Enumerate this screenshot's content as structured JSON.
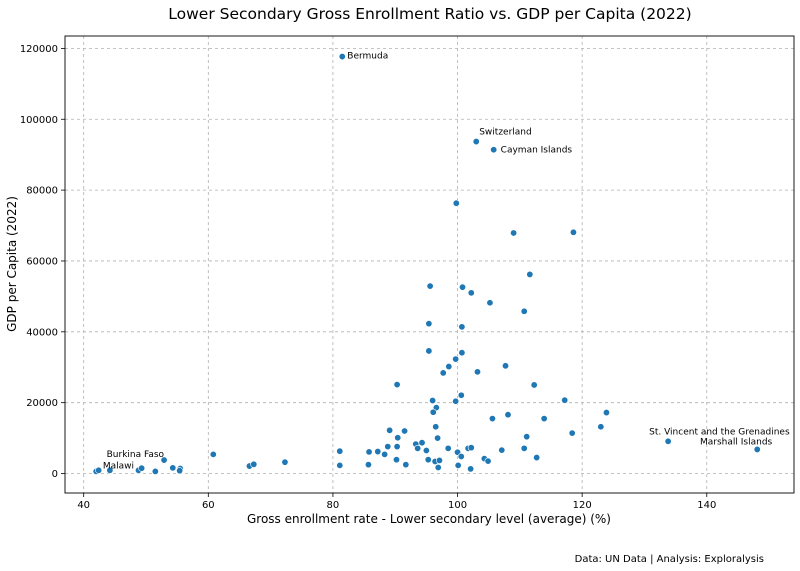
{
  "chart_data": {
    "type": "scatter",
    "title": "Lower Secondary Gross Enrollment Ratio vs. GDP per Capita (2022)",
    "xlabel": "Gross enrollment rate - Lower secondary level (average) (%)",
    "ylabel": "GDP per Capita (2022)",
    "xlim": [
      37,
      154
    ],
    "ylim": [
      -5500,
      123500
    ],
    "xticks": [
      40,
      60,
      80,
      100,
      120,
      140
    ],
    "yticks": [
      0,
      20000,
      40000,
      60000,
      80000,
      100000,
      120000
    ],
    "grid": true,
    "marker_color": "#1f77b4",
    "points": [
      [
        81.5,
        117700
      ],
      [
        103,
        93700
      ],
      [
        105.8,
        91400
      ],
      [
        99.8,
        76300
      ],
      [
        109,
        67900
      ],
      [
        118.6,
        68100
      ],
      [
        111.6,
        56200
      ],
      [
        95.6,
        52900
      ],
      [
        100.8,
        52600
      ],
      [
        102.2,
        51000
      ],
      [
        105.2,
        48200
      ],
      [
        110.7,
        45800
      ],
      [
        95.4,
        42300
      ],
      [
        100.7,
        41400
      ],
      [
        95.4,
        34600
      ],
      [
        100.7,
        34100
      ],
      [
        99.7,
        32300
      ],
      [
        98.6,
        30200
      ],
      [
        107.7,
        30400
      ],
      [
        97.7,
        28400
      ],
      [
        103.2,
        28700
      ],
      [
        90.3,
        25100
      ],
      [
        112.3,
        25000
      ],
      [
        96,
        20600
      ],
      [
        99.7,
        20400
      ],
      [
        100.6,
        22100
      ],
      [
        96.6,
        18600
      ],
      [
        96.1,
        17300
      ],
      [
        117.2,
        20700
      ],
      [
        123.9,
        17200
      ],
      [
        105.6,
        15500
      ],
      [
        108.1,
        16600
      ],
      [
        113.9,
        15500
      ],
      [
        96.5,
        13200
      ],
      [
        89.1,
        12200
      ],
      [
        91.5,
        12000
      ],
      [
        118.4,
        11400
      ],
      [
        123,
        13200
      ],
      [
        111.1,
        10400
      ],
      [
        96.8,
        10000
      ],
      [
        90.4,
        10100
      ],
      [
        93.3,
        8300
      ],
      [
        94.3,
        8700
      ],
      [
        133.8,
        9100
      ],
      [
        148.1,
        6800
      ],
      [
        81.1,
        6300
      ],
      [
        85.8,
        6100
      ],
      [
        87.2,
        6200
      ],
      [
        88.3,
        5400
      ],
      [
        88.8,
        7600
      ],
      [
        90.3,
        7600
      ],
      [
        93.6,
        7100
      ],
      [
        95,
        6500
      ],
      [
        98.5,
        7100
      ],
      [
        100,
        6000
      ],
      [
        100.6,
        4800
      ],
      [
        101.7,
        7100
      ],
      [
        102.2,
        7300
      ],
      [
        107.1,
        6600
      ],
      [
        110.7,
        7100
      ],
      [
        112.7,
        4500
      ],
      [
        90.2,
        3900
      ],
      [
        95.3,
        3900
      ],
      [
        96.4,
        3400
      ],
      [
        97.1,
        3700
      ],
      [
        104.3,
        4200
      ],
      [
        104.9,
        3500
      ],
      [
        81.1,
        2300
      ],
      [
        85.7,
        2500
      ],
      [
        91.7,
        2500
      ],
      [
        96.9,
        1700
      ],
      [
        100.1,
        2300
      ],
      [
        102.1,
        1300
      ],
      [
        72.3,
        3200
      ],
      [
        66.6,
        2100
      ],
      [
        67.3,
        2600
      ],
      [
        60.8,
        5400
      ],
      [
        52.9,
        3800
      ],
      [
        54.3,
        1600
      ],
      [
        55.5,
        1400
      ],
      [
        55.4,
        800
      ],
      [
        51.5,
        600
      ],
      [
        48.8,
        900
      ],
      [
        49.3,
        1500
      ],
      [
        44.2,
        900
      ],
      [
        42,
        600
      ],
      [
        42.4,
        900
      ]
    ],
    "annotations": [
      {
        "text": "Bermuda",
        "x": 81.5,
        "y": 117700
      },
      {
        "text": "Switzerland",
        "x": 103,
        "y": 93700
      },
      {
        "text": "Cayman Islands",
        "x": 105.8,
        "y": 91400
      },
      {
        "text": "St. Vincent and the Grenadines",
        "x": 133.8,
        "y": 9100
      },
      {
        "text": "Marshall Islands",
        "x": 148.1,
        "y": 6800
      },
      {
        "text": "Burkina Faso",
        "x": 52.9,
        "y": 3800
      },
      {
        "text": "Malawi",
        "x": 44.2,
        "y": 900
      }
    ]
  },
  "source": "Data: UN Data | Analysis: Exploralysis"
}
